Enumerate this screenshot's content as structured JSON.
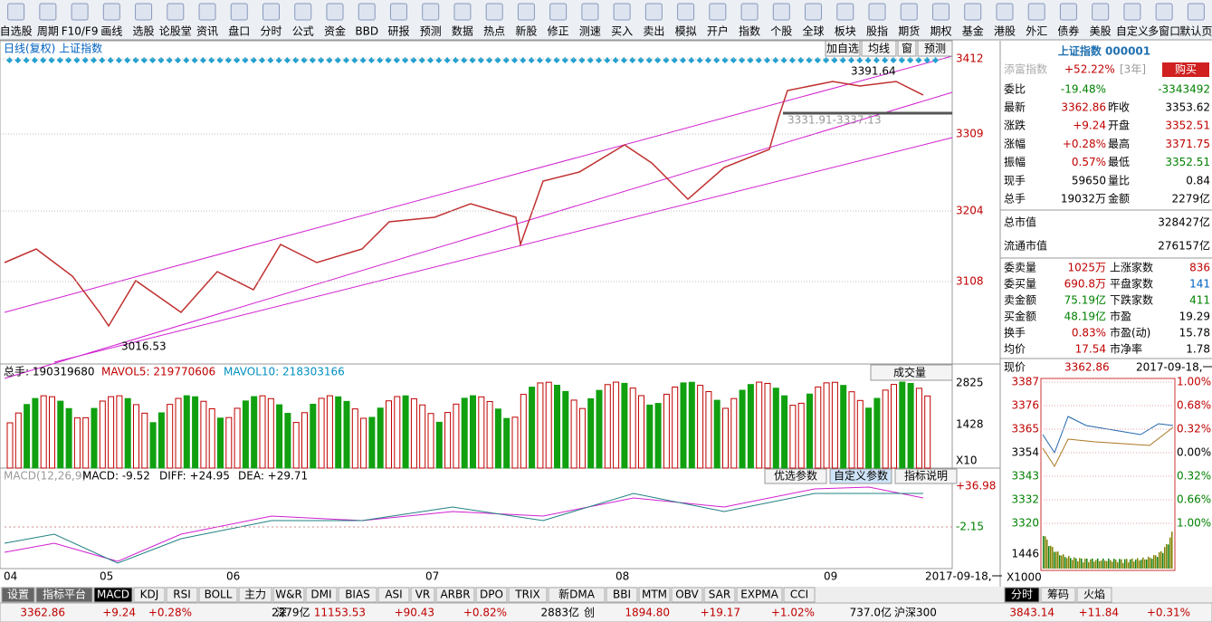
{
  "toolbar": {
    "buttons": [
      "自选股",
      "周期",
      "F10/F9",
      "画线",
      "选股",
      "论股堂",
      "资讯",
      "盘口",
      "分时",
      "公式",
      "资金",
      "BBD",
      "研报",
      "预测",
      "数据",
      "热点",
      "新股",
      "修正",
      "测速",
      "买入",
      "卖出",
      "模拟",
      "开户",
      "指数",
      "个股",
      "全球",
      "板块",
      "股指",
      "期货",
      "期权",
      "基金",
      "港股",
      "外汇",
      "债券",
      "美股",
      "自定义",
      "多窗口",
      "默认页"
    ]
  },
  "chart": {
    "title": "日线(复权) 上证指数",
    "buttons": [
      "加自选",
      "均线",
      "窗",
      "预测"
    ],
    "price_axis": [
      "3412",
      "3309",
      "3204",
      "3108"
    ],
    "annotations": [
      "3391.64",
      "3331.91-3337.13",
      "3016.53"
    ],
    "volume": {
      "items": [
        "总手: 190319680",
        "MAVOL5: 219770606",
        "MAVOL10: 218303166"
      ],
      "selector": "成交量",
      "axis": [
        "2825",
        "1428"
      ],
      "unit": "X10"
    },
    "macd": {
      "items": [
        "MACD(12,26,9)",
        "MACD: -9.52",
        "DIFF: +24.95",
        "DEA: +29.71"
      ],
      "buttons": [
        "优选参数",
        "自定义参数",
        "指标说明"
      ],
      "axis": [
        "+36.98",
        "-2.15"
      ]
    },
    "x_labels": [
      "04",
      "05",
      "06",
      "07",
      "08",
      "09"
    ],
    "date": "2017-09-18,一",
    "tabs": [
      "设置",
      "指标平台",
      "MACD",
      "KDJ",
      "RSI",
      "BOLL",
      "主力",
      "W&R",
      "DMI",
      "BIAS",
      "ASI",
      "VR",
      "ARBR",
      "DPO",
      "TRIX",
      "新DMA",
      "BBI",
      "MTM",
      "OBV",
      "SAR",
      "EXPMA",
      "CCI"
    ]
  },
  "panel": {
    "title": "上证指数 000001",
    "promo": [
      "添富指数",
      "+52.22%",
      "[3年]",
      "购买"
    ],
    "weibi": [
      "委比",
      "-19.48%",
      "-3343492"
    ],
    "rows": [
      [
        "最新",
        "3362.86",
        "昨收",
        "3353.62"
      ],
      [
        "涨跌",
        "+9.24",
        "开盘",
        "3352.51"
      ],
      [
        "涨幅",
        "+0.28%",
        "最高",
        "3371.75"
      ],
      [
        "振幅",
        "0.57%",
        "最低",
        "3352.51"
      ],
      [
        "现手",
        "59650",
        "量比",
        "0.84"
      ],
      [
        "总手",
        "19032万",
        "金额",
        "2279亿"
      ]
    ],
    "caps": [
      [
        "总市值",
        "328427亿"
      ],
      [
        "流通市值",
        "276157亿"
      ]
    ],
    "stats": [
      [
        "委卖量",
        "1025万",
        "上涨家数",
        "836"
      ],
      [
        "委买量",
        "690.8万",
        "平盘家数",
        "141"
      ],
      [
        "卖金额",
        "75.19亿",
        "下跌家数",
        "411"
      ],
      [
        "买金额",
        "48.19亿",
        "市盈",
        "19.29"
      ],
      [
        "换手",
        "0.83%",
        "市盈(动)",
        "15.78"
      ],
      [
        "均价",
        "17.54",
        "市净率",
        "1.78"
      ]
    ],
    "now": [
      "现价",
      "3362.86",
      "2017-09-18,一"
    ],
    "mini_left": [
      "3387",
      "3376",
      "3365",
      "3354",
      "3343",
      "3332",
      "3320"
    ],
    "mini_right": [
      "1.00%",
      "0.68%",
      "0.32%",
      "0.00%",
      "0.32%",
      "0.66%",
      "1.00%"
    ],
    "mini_vol": "1446",
    "mini_unit": "X1000",
    "tabs": [
      "分时",
      "筹码",
      "火焰"
    ]
  },
  "status": [
    "3362.86",
    "+9.24",
    "+0.28%",
    "2279亿",
    "深",
    "11153.53",
    "+90.43",
    "+0.82%",
    "2883亿",
    "创",
    "1894.80",
    "+19.17",
    "+1.02%",
    "737.0亿",
    "沪深300",
    "3843.14",
    "+11.84",
    "+0.31%"
  ]
}
